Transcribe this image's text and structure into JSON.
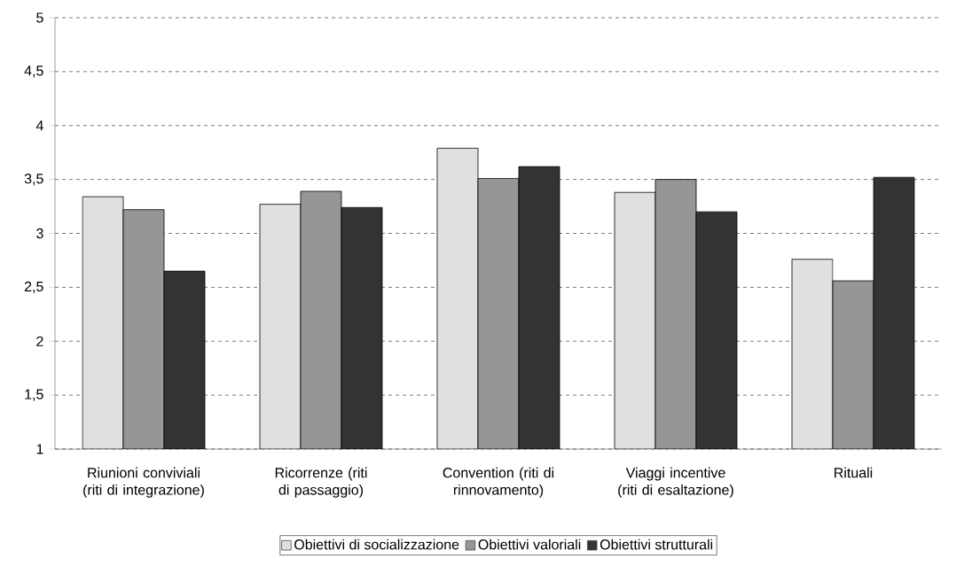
{
  "chart_data": {
    "type": "bar",
    "categories": [
      "Riunioni conviviali (riti di integrazione)",
      "Ricorrenze (riti di passaggio)",
      "Convention (riti di rinnovamento)",
      "Viaggi incentive (riti di esaltazione)",
      "Rituali"
    ],
    "series": [
      {
        "name": "Obiettivi di socializzazione",
        "color": "#e0e0e0",
        "values": [
          3.34,
          3.27,
          3.79,
          3.38,
          2.76
        ]
      },
      {
        "name": "Obiettivi valoriali",
        "color": "#969696",
        "values": [
          3.22,
          3.39,
          3.51,
          3.5,
          2.56
        ]
      },
      {
        "name": "Obiettivi strutturali",
        "color": "#333333",
        "values": [
          2.65,
          3.24,
          3.62,
          3.2,
          3.52
        ]
      }
    ],
    "ylim": [
      1,
      5
    ],
    "yticks": [
      1,
      {
        "value": 1.5,
        "label": "1,5"
      },
      2,
      {
        "value": 2.5,
        "label": "2,5"
      },
      3,
      {
        "value": 3.5,
        "label": "3,5"
      },
      4,
      {
        "value": 4.5,
        "label": "4,5"
      },
      5
    ],
    "grid": "y",
    "legend": "bottom"
  }
}
